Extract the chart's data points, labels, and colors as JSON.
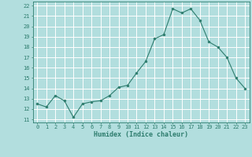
{
  "x": [
    0,
    1,
    2,
    3,
    4,
    5,
    6,
    7,
    8,
    9,
    10,
    11,
    12,
    13,
    14,
    15,
    16,
    17,
    18,
    19,
    20,
    21,
    22,
    23
  ],
  "y": [
    12.5,
    12.2,
    13.3,
    12.8,
    11.2,
    12.5,
    12.7,
    12.8,
    13.3,
    14.1,
    14.3,
    15.5,
    16.6,
    18.8,
    19.2,
    21.7,
    21.3,
    21.7,
    20.6,
    18.5,
    18.0,
    17.0,
    15.0,
    14.0
  ],
  "line_color": "#2e7d6e",
  "marker": "o",
  "marker_size": 2,
  "bg_color": "#b2dede",
  "grid_color": "#ffffff",
  "xlabel": "Humidex (Indice chaleur)",
  "ylabel_ticks": [
    11,
    12,
    13,
    14,
    15,
    16,
    17,
    18,
    19,
    20,
    21,
    22
  ],
  "ylim": [
    10.7,
    22.4
  ],
  "xlim": [
    -0.5,
    23.5
  ],
  "figsize": [
    3.2,
    2.0
  ],
  "dpi": 100,
  "tick_fontsize": 5.0,
  "xlabel_fontsize": 6.0,
  "linewidth": 0.8
}
